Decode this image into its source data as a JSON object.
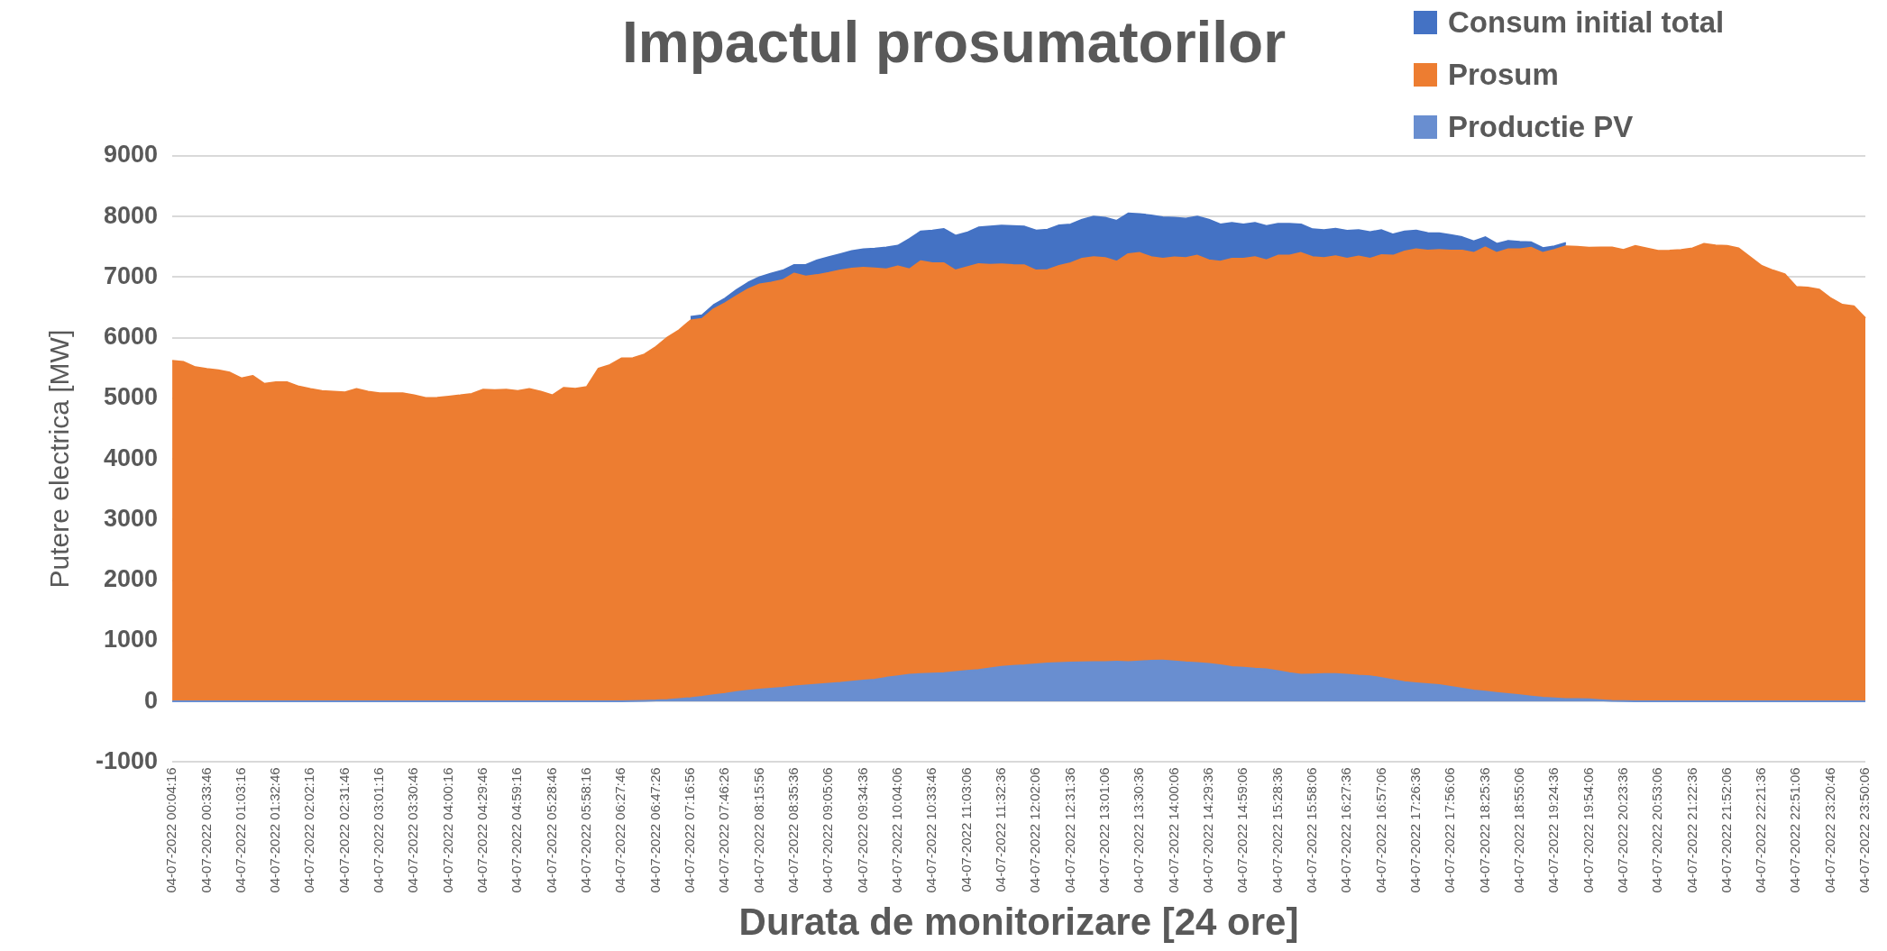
{
  "chart_data": {
    "type": "area",
    "title": "Impactul prosumatorilor",
    "xlabel": "Durata de monitorizare [24 ore]",
    "ylabel": "Putere electrica [MW]",
    "categories": [
      "04-07-2022 00:04:16",
      null,
      null,
      "04-07-2022 00:33:46",
      null,
      null,
      "04-07-2022 01:03:16",
      null,
      null,
      "04-07-2022 01:32:46",
      null,
      null,
      "04-07-2022 02:02:16",
      null,
      null,
      "04-07-2022 02:31:46",
      null,
      null,
      "04-07-2022 03:01:16",
      null,
      null,
      "04-07-2022 03:30:46",
      null,
      null,
      "04-07-2022 04:00:16",
      null,
      null,
      "04-07-2022 04:29:46",
      null,
      null,
      "04-07-2022 04:59:16",
      null,
      null,
      "04-07-2022 05:28:46",
      null,
      null,
      "04-07-2022 05:58:16",
      null,
      null,
      "04-07-2022 06:27:46",
      null,
      null,
      "04-07-2022 06:47:26",
      null,
      null,
      "04-07-2022 07:16:56",
      null,
      null,
      "04-07-2022 07:46:26",
      null,
      null,
      "04-07-2022 08:15:56",
      null,
      null,
      "04-07-2022 08:35:36",
      null,
      null,
      "04-07-2022 09:05:06",
      null,
      null,
      "04-07-2022 09:34:36",
      null,
      null,
      "04-07-2022 10:04:06",
      null,
      null,
      "04-07-2022 10:33:46",
      null,
      null,
      "04-07-2022 11:03:06",
      null,
      null,
      "04-07-2022 11:32:36",
      null,
      null,
      "04-07-2022 12:02:06",
      null,
      null,
      "04-07-2022 12:31:36",
      null,
      null,
      "04-07-2022 13:01:06",
      null,
      null,
      "04-07-2022 13:30:36",
      null,
      null,
      "04-07-2022 14:00:06",
      null,
      null,
      "04-07-2022 14:29:36",
      null,
      null,
      "04-07-2022 14:59:06",
      null,
      null,
      "04-07-2022 15:28:36",
      null,
      null,
      "04-07-2022 15:58:06",
      null,
      null,
      "04-07-2022 16:27:36",
      null,
      null,
      "04-07-2022 16:57:06",
      null,
      null,
      "04-07-2022 17:26:36",
      null,
      null,
      "04-07-2022 17:56:06",
      null,
      null,
      "04-07-2022 18:25:36",
      null,
      null,
      "04-07-2022 18:55:06",
      null,
      null,
      "04-07-2022 19:24:36",
      null,
      null,
      "04-07-2022 19:54:06",
      null,
      null,
      "04-07-2022 20:23:36",
      null,
      null,
      "04-07-2022 20:53:06",
      null,
      null,
      "04-07-2022 21:22:36",
      null,
      null,
      "04-07-2022 21:52:06",
      null,
      null,
      "04-07-2022 22:21:36",
      null,
      null,
      "04-07-2022 22:51:06",
      null,
      null,
      "04-07-2022 23:20:46",
      null,
      null,
      "04-07-2022 23:50:06"
    ],
    "series": [
      {
        "name": "Consum initial total",
        "color": "#4472c4",
        "values": [
          null,
          null,
          null,
          null,
          null,
          null,
          null,
          null,
          null,
          null,
          null,
          null,
          null,
          null,
          null,
          null,
          null,
          null,
          null,
          null,
          null,
          null,
          null,
          null,
          null,
          null,
          null,
          null,
          null,
          null,
          null,
          null,
          null,
          null,
          null,
          null,
          null,
          null,
          null,
          null,
          null,
          null,
          null,
          null,
          null,
          6345,
          6370,
          6540,
          6650,
          6790,
          6910,
          7000,
          7060,
          7110,
          7200,
          7200,
          7280,
          7330,
          7380,
          7430,
          7460,
          7470,
          7490,
          7520,
          7630,
          7755,
          7770,
          7795,
          7685,
          7735,
          7820,
          7835,
          7850,
          7845,
          7835,
          7770,
          7785,
          7855,
          7870,
          7950,
          8000,
          7980,
          7930,
          8050,
          8040,
          8020,
          7990,
          7980,
          7965,
          8000,
          7950,
          7870,
          7895,
          7870,
          7895,
          7845,
          7880,
          7880,
          7870,
          7790,
          7775,
          7800,
          7765,
          7775,
          7745,
          7775,
          7705,
          7755,
          7770,
          7730,
          7725,
          7695,
          7660,
          7590,
          7660,
          7550,
          7600,
          7585,
          7575,
          7480,
          7510,
          7565,
          null,
          null,
          null,
          null,
          null,
          null,
          null,
          null,
          null,
          null,
          null,
          null,
          null,
          null,
          null,
          null,
          null,
          null,
          null,
          null,
          null,
          null,
          null,
          null,
          null,
          null
        ]
      },
      {
        "name": "Prosum",
        "color": "#ed7d31",
        "values": [
          5620,
          5600,
          5515,
          5485,
          5465,
          5425,
          5330,
          5370,
          5240,
          5265,
          5265,
          5195,
          5155,
          5120,
          5110,
          5100,
          5155,
          5110,
          5085,
          5085,
          5085,
          5050,
          5005,
          5010,
          5030,
          5050,
          5075,
          5145,
          5135,
          5145,
          5120,
          5155,
          5110,
          5050,
          5175,
          5160,
          5190,
          5490,
          5550,
          5660,
          5665,
          5725,
          5850,
          6005,
          6125,
          6285,
          6310,
          6470,
          6570,
          6690,
          6800,
          6880,
          6910,
          6950,
          7060,
          7010,
          7035,
          7070,
          7110,
          7140,
          7155,
          7145,
          7130,
          7180,
          7130,
          7265,
          7230,
          7230,
          7110,
          7165,
          7215,
          7205,
          7210,
          7200,
          7195,
          7110,
          7120,
          7185,
          7230,
          7305,
          7330,
          7315,
          7255,
          7380,
          7400,
          7330,
          7305,
          7325,
          7315,
          7355,
          7280,
          7255,
          7305,
          7305,
          7330,
          7280,
          7355,
          7355,
          7400,
          7330,
          7315,
          7345,
          7305,
          7340,
          7305,
          7365,
          7355,
          7425,
          7460,
          7440,
          7450,
          7440,
          7440,
          7400,
          7490,
          7400,
          7460,
          7460,
          7485,
          7400,
          7450,
          7510,
          7500,
          7485,
          7490,
          7490,
          7450,
          7515,
          7475,
          7435,
          7440,
          7450,
          7475,
          7550,
          7525,
          7515,
          7475,
          7330,
          7185,
          7110,
          7050,
          6840,
          6830,
          6795,
          6650,
          6545,
          6520,
          6325
        ]
      },
      {
        "name": "Productie PV",
        "color": "#698ed0",
        "values": [
          0,
          0,
          0,
          0,
          0,
          0,
          0,
          0,
          0,
          0,
          0,
          0,
          0,
          0,
          0,
          0,
          0,
          0,
          0,
          0,
          0,
          0,
          0,
          0,
          0,
          0,
          0,
          0,
          0,
          0,
          0,
          0,
          0,
          0,
          0,
          0,
          0,
          0,
          0,
          0,
          5,
          10,
          15,
          25,
          40,
          55,
          75,
          100,
          125,
          155,
          175,
          195,
          210,
          225,
          245,
          260,
          275,
          290,
          305,
          325,
          345,
          360,
          390,
          415,
          440,
          450,
          460,
          465,
          485,
          505,
          520,
          545,
          570,
          585,
          595,
          610,
          625,
          635,
          640,
          645,
          650,
          650,
          655,
          650,
          660,
          670,
          675,
          660,
          645,
          635,
          620,
          595,
          565,
          555,
          540,
          530,
          500,
          465,
          440,
          445,
          450,
          450,
          440,
          425,
          415,
          385,
          350,
          318,
          300,
          285,
          270,
          240,
          210,
          180,
          160,
          140,
          122,
          100,
          80,
          59,
          48,
          40,
          37,
          34,
          20,
          10,
          5,
          0,
          0,
          0,
          0,
          0,
          0,
          0,
          0,
          0,
          0,
          0,
          0,
          0,
          0,
          0,
          0,
          0,
          0,
          0,
          0,
          0
        ]
      }
    ],
    "ylim": [
      -1000,
      9000
    ],
    "yticks": [
      -1000,
      0,
      1000,
      2000,
      3000,
      4000,
      5000,
      6000,
      7000,
      8000,
      9000
    ],
    "grid": "y",
    "legend": "top right"
  }
}
